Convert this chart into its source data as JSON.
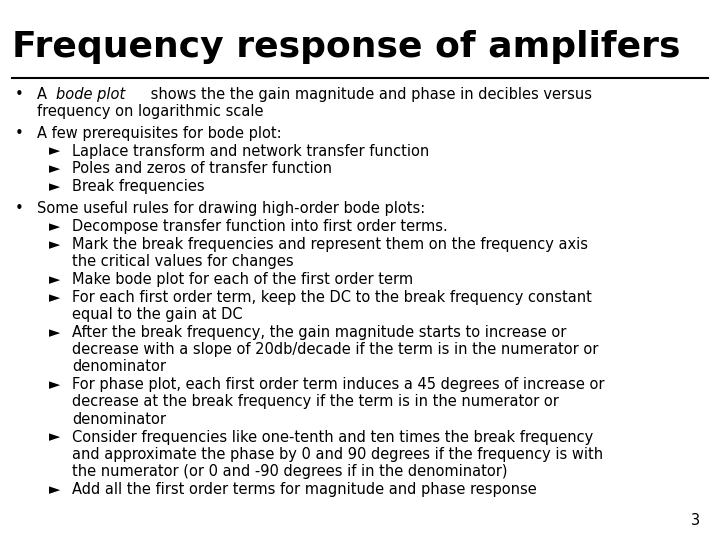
{
  "title": "Frequency response of amplifers",
  "background_color": "#ffffff",
  "text_color": "#000000",
  "title_fontsize": 26,
  "body_fontsize": 10.5,
  "slide_number": "3",
  "content": [
    {
      "level": 1,
      "bullet": "•",
      "text": "A bode plot shows the the gain magnitude and phase in decibles versus\nfrequency on logarithmic scale",
      "italic_phrase": "bode plot"
    },
    {
      "level": 1,
      "bullet": "•",
      "text": "A few prerequisites for bode plot:"
    },
    {
      "level": 2,
      "bullet": "►",
      "text": "Laplace transform and network transfer function"
    },
    {
      "level": 2,
      "bullet": "►",
      "text": "Poles and zeros of transfer function"
    },
    {
      "level": 2,
      "bullet": "►",
      "text": "Break frequencies"
    },
    {
      "level": 1,
      "bullet": "•",
      "text": "Some useful rules for drawing high-order bode plots:"
    },
    {
      "level": 2,
      "bullet": "►",
      "text": "Decompose transfer function into first order terms."
    },
    {
      "level": 2,
      "bullet": "►",
      "text": "Mark the break frequencies and represent them on the frequency axis\nthe critical values for changes"
    },
    {
      "level": 2,
      "bullet": "►",
      "text": "Make bode plot for each of the first order term"
    },
    {
      "level": 2,
      "bullet": "►",
      "text": "For each first order term, keep the DC to the break frequency constant\nequal to the gain at DC"
    },
    {
      "level": 2,
      "bullet": "►",
      "text": "After the break frequency, the gain magnitude starts to increase or\ndecrease with a slope of 20db/decade if the term is in the numerator or\ndenominator"
    },
    {
      "level": 2,
      "bullet": "►",
      "text": "For phase plot, each first order term induces a 45 degrees of increase or\ndecrease at the break frequency if the term is in the numerator or\ndenominator"
    },
    {
      "level": 2,
      "bullet": "►",
      "text": "Consider frequencies like one-tenth and ten times the break frequency\nand approximate the phase by 0 and 90 degrees if the frequency is with\nthe numerator (or 0 and -90 degrees if in the denominator)"
    },
    {
      "level": 2,
      "bullet": "►",
      "text": "Add all the first order terms for magnitude and phase response"
    }
  ]
}
